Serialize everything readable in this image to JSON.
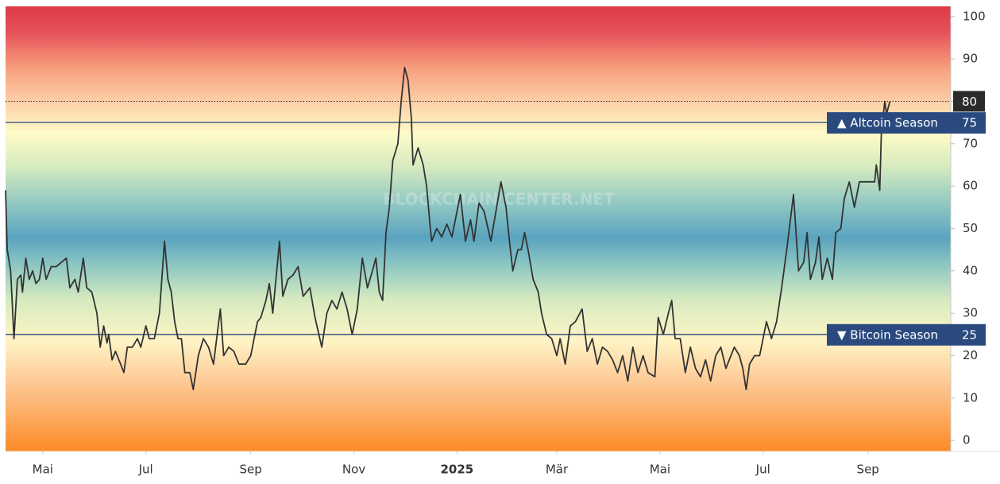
{
  "chart_data": {
    "type": "line",
    "watermark": "BLOCKCHAIN CENTER.NET",
    "xlim": [
      0,
      559
    ],
    "xticks": [
      {
        "value": 22,
        "label": "Mai"
      },
      {
        "value": 83,
        "label": "Jul"
      },
      {
        "value": 145,
        "label": "Sep"
      },
      {
        "value": 206,
        "label": "Nov"
      },
      {
        "value": 267,
        "label": "2025"
      },
      {
        "value": 326,
        "label": "Mär"
      },
      {
        "value": 387,
        "label": "Mai"
      },
      {
        "value": 448,
        "label": "Jul"
      },
      {
        "value": 510,
        "label": "Sep"
      }
    ],
    "ylim": [
      -2.6,
      102.4
    ],
    "yticks": [
      0,
      10,
      20,
      30,
      40,
      50,
      60,
      70,
      80,
      90,
      100
    ],
    "color": "#333333",
    "reference_lines": [
      {
        "value": 75,
        "label": "▲ Altcoin Season",
        "color": "#2a4a7f"
      },
      {
        "value": 25,
        "label": "▼ Bitcoin Season",
        "color": "#2a4a7f"
      }
    ],
    "x": [
      0,
      1,
      3,
      5,
      7,
      9,
      10,
      12,
      14,
      16,
      18,
      20,
      22,
      24,
      27,
      30,
      33,
      36,
      38,
      41,
      43,
      46,
      48,
      51,
      54,
      56,
      58,
      60,
      61,
      63,
      65,
      68,
      70,
      72,
      75,
      78,
      80,
      83,
      85,
      88,
      91,
      94,
      96,
      98,
      100,
      102,
      104,
      106,
      109,
      111,
      114,
      117,
      120,
      123,
      127,
      129,
      132,
      135,
      138,
      142,
      145,
      147,
      149,
      151,
      154,
      156,
      158,
      162,
      164,
      167,
      170,
      173,
      176,
      180,
      183,
      187,
      190,
      193,
      196,
      199,
      202,
      205,
      208,
      211,
      214,
      217,
      219,
      221,
      223,
      225,
      227,
      229,
      232,
      234,
      236,
      238,
      240,
      241,
      244,
      247,
      249,
      251,
      252,
      255,
      258,
      261,
      264,
      269,
      272,
      275,
      277,
      280,
      283,
      287,
      293,
      296,
      298,
      300,
      303,
      305,
      307,
      309,
      312,
      315,
      317,
      320,
      323,
      326,
      328,
      331,
      334,
      337,
      341,
      344,
      347,
      350,
      353,
      356,
      359,
      362,
      365,
      368,
      371,
      374,
      377,
      380,
      384,
      386,
      389,
      392,
      394,
      396,
      399,
      402,
      405,
      408,
      411,
      414,
      417,
      420,
      423,
      426,
      431,
      434,
      436,
      438,
      440,
      443,
      446,
      450,
      453,
      456,
      459,
      462,
      466,
      469,
      472,
      474,
      476,
      479,
      481,
      483,
      486,
      489,
      491,
      494,
      496,
      499,
      502,
      505,
      508,
      511,
      514,
      515,
      517,
      518,
      520,
      521,
      523
    ],
    "values": [
      59,
      45,
      40,
      24,
      38,
      39,
      35,
      43,
      38,
      40,
      37,
      38,
      43,
      38,
      41,
      41,
      42,
      43,
      36,
      38,
      35,
      43,
      36,
      35,
      30,
      22,
      27,
      23,
      25,
      19,
      21,
      18,
      16,
      22,
      22,
      24,
      22,
      27,
      24,
      24,
      30,
      47,
      38,
      35,
      28,
      24,
      24,
      16,
      16,
      12,
      20,
      24,
      22,
      18,
      31,
      20,
      22,
      21,
      18,
      18,
      20,
      24,
      28,
      29,
      33,
      37,
      30,
      47,
      34,
      38,
      39,
      41,
      34,
      36,
      29,
      22,
      30,
      33,
      31,
      35,
      31,
      25,
      31,
      43,
      36,
      40,
      43,
      35,
      33,
      49,
      55,
      66,
      70,
      80,
      88,
      85,
      76,
      65,
      69,
      65,
      60,
      51,
      47,
      50,
      48,
      51,
      48,
      58,
      47,
      52,
      47,
      56,
      54,
      47,
      61,
      55,
      47,
      40,
      45,
      45,
      49,
      45,
      38,
      35,
      30,
      25,
      24,
      20,
      24,
      18,
      27,
      28,
      31,
      21,
      24,
      18,
      22,
      21,
      19,
      16,
      20,
      14,
      22,
      16,
      20,
      16,
      15,
      29,
      25,
      30,
      33,
      24,
      24,
      16,
      22,
      17,
      15,
      19,
      14,
      20,
      22,
      17,
      22,
      20,
      17,
      12,
      18,
      20,
      20,
      28,
      24,
      28,
      36,
      45,
      58,
      40,
      42,
      49,
      38,
      42,
      48,
      38,
      43,
      38,
      49,
      50,
      57,
      61,
      55,
      61,
      61,
      61,
      61,
      65,
      59,
      73,
      80,
      77,
      80
    ]
  }
}
